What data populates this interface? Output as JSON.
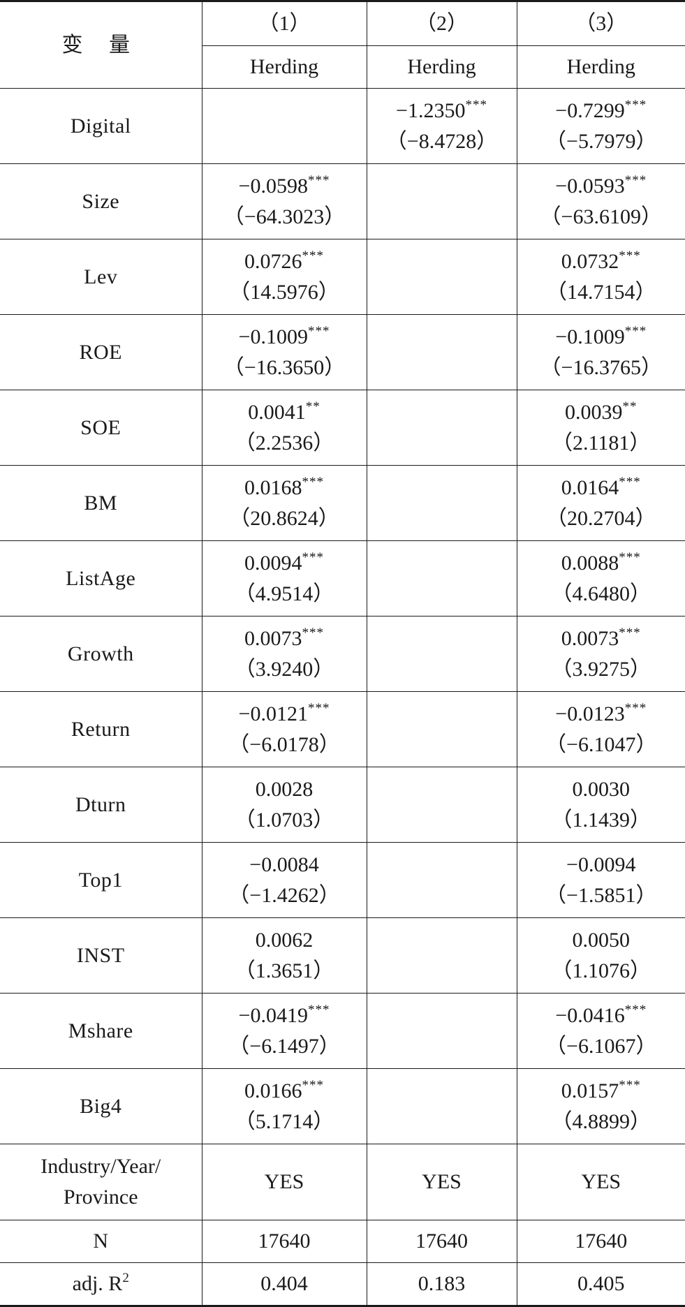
{
  "header": {
    "variable_label": "变 量",
    "columns": [
      "（1）",
      "（2）",
      "（3）"
    ],
    "dependent": [
      "Herding",
      "Herding",
      "Herding"
    ]
  },
  "rows": [
    {
      "name": "Digital",
      "cells": [
        {
          "coef": "",
          "stars": "",
          "t": ""
        },
        {
          "coef": "−1.2350",
          "stars": "***",
          "t": "（−8.4728）"
        },
        {
          "coef": "−0.7299",
          "stars": "***",
          "t": "（−5.7979）"
        }
      ]
    },
    {
      "name": "Size",
      "cells": [
        {
          "coef": "−0.0598",
          "stars": "***",
          "t": "（−64.3023）"
        },
        {
          "coef": "",
          "stars": "",
          "t": ""
        },
        {
          "coef": "−0.0593",
          "stars": "***",
          "t": "（−63.6109）"
        }
      ]
    },
    {
      "name": "Lev",
      "cells": [
        {
          "coef": "0.0726",
          "stars": "***",
          "t": "（14.5976）"
        },
        {
          "coef": "",
          "stars": "",
          "t": ""
        },
        {
          "coef": "0.0732",
          "stars": "***",
          "t": "（14.7154）"
        }
      ]
    },
    {
      "name": "ROE",
      "cells": [
        {
          "coef": "−0.1009",
          "stars": "***",
          "t": "（−16.3650）"
        },
        {
          "coef": "",
          "stars": "",
          "t": ""
        },
        {
          "coef": "−0.1009",
          "stars": "***",
          "t": "（−16.3765）"
        }
      ]
    },
    {
      "name": "SOE",
      "cells": [
        {
          "coef": "0.0041",
          "stars": "**",
          "t": "（2.2536）"
        },
        {
          "coef": "",
          "stars": "",
          "t": ""
        },
        {
          "coef": "0.0039",
          "stars": "**",
          "t": "（2.1181）"
        }
      ]
    },
    {
      "name": "BM",
      "cells": [
        {
          "coef": "0.0168",
          "stars": "***",
          "t": "（20.8624）"
        },
        {
          "coef": "",
          "stars": "",
          "t": ""
        },
        {
          "coef": "0.0164",
          "stars": "***",
          "t": "（20.2704）"
        }
      ]
    },
    {
      "name": "ListAge",
      "cells": [
        {
          "coef": "0.0094",
          "stars": "***",
          "t": "（4.9514）"
        },
        {
          "coef": "",
          "stars": "",
          "t": ""
        },
        {
          "coef": "0.0088",
          "stars": "***",
          "t": "（4.6480）"
        }
      ]
    },
    {
      "name": "Growth",
      "cells": [
        {
          "coef": "0.0073",
          "stars": "***",
          "t": "（3.9240）"
        },
        {
          "coef": "",
          "stars": "",
          "t": ""
        },
        {
          "coef": "0.0073",
          "stars": "***",
          "t": "（3.9275）"
        }
      ]
    },
    {
      "name": "Return",
      "cells": [
        {
          "coef": "−0.0121",
          "stars": "***",
          "t": "（−6.0178）"
        },
        {
          "coef": "",
          "stars": "",
          "t": ""
        },
        {
          "coef": "−0.0123",
          "stars": "***",
          "t": "（−6.1047）"
        }
      ]
    },
    {
      "name": "Dturn",
      "cells": [
        {
          "coef": "0.0028",
          "stars": "",
          "t": "（1.0703）"
        },
        {
          "coef": "",
          "stars": "",
          "t": ""
        },
        {
          "coef": "0.0030",
          "stars": "",
          "t": "（1.1439）"
        }
      ]
    },
    {
      "name": "Top1",
      "cells": [
        {
          "coef": "−0.0084",
          "stars": "",
          "t": "（−1.4262）"
        },
        {
          "coef": "",
          "stars": "",
          "t": ""
        },
        {
          "coef": "−0.0094",
          "stars": "",
          "t": "（−1.5851）"
        }
      ]
    },
    {
      "name": "INST",
      "cells": [
        {
          "coef": "0.0062",
          "stars": "",
          "t": "（1.3651）"
        },
        {
          "coef": "",
          "stars": "",
          "t": ""
        },
        {
          "coef": "0.0050",
          "stars": "",
          "t": "（1.1076）"
        }
      ]
    },
    {
      "name": "Mshare",
      "cells": [
        {
          "coef": "−0.0419",
          "stars": "***",
          "t": "（−6.1497）"
        },
        {
          "coef": "",
          "stars": "",
          "t": ""
        },
        {
          "coef": "−0.0416",
          "stars": "***",
          "t": "（−6.1067）"
        }
      ]
    },
    {
      "name": "Big4",
      "cells": [
        {
          "coef": "0.0166",
          "stars": "***",
          "t": "（5.1714）"
        },
        {
          "coef": "",
          "stars": "",
          "t": ""
        },
        {
          "coef": "0.0157",
          "stars": "***",
          "t": "（4.8899）"
        }
      ]
    }
  ],
  "fixed_effects": {
    "label_line1": "Industry/Year/",
    "label_line2": "Province",
    "values": [
      "YES",
      "YES",
      "YES"
    ]
  },
  "n": {
    "label": "N",
    "values": [
      "17640",
      "17640",
      "17640"
    ]
  },
  "r2": {
    "label": "adj. R",
    "sup": "2",
    "values": [
      "0.404",
      "0.183",
      "0.405"
    ]
  }
}
